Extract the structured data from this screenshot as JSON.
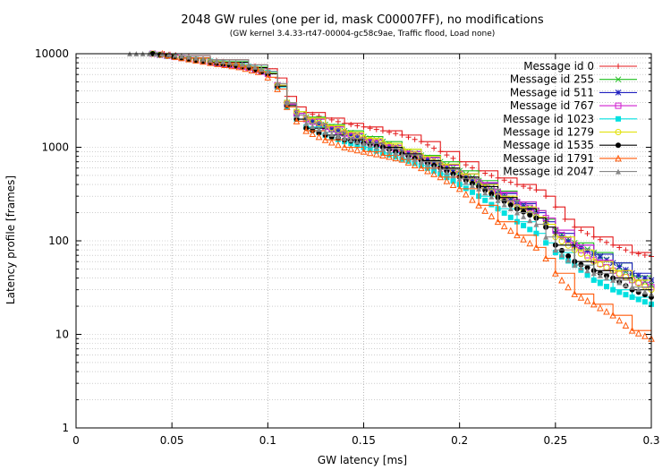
{
  "chart_data": {
    "type": "line",
    "title": "2048 GW rules (one per id, mask C00007FF), no modifications",
    "subtitle": "(GW kernel 3.4.33-rt47-00004-gc58c9ae, Traffic flood, Load none)",
    "xlabel": "GW latency [ms]",
    "ylabel": "Latency profile [frames]",
    "xlim": [
      0,
      0.3
    ],
    "ylim": [
      1,
      10000
    ],
    "yscale": "log",
    "grid": true,
    "legend_position": "top-right",
    "x_ticks": [
      {
        "value": 0,
        "label": "0"
      },
      {
        "value": 0.05,
        "label": "0.05"
      },
      {
        "value": 0.1,
        "label": "0.1"
      },
      {
        "value": 0.15,
        "label": "0.15"
      },
      {
        "value": 0.2,
        "label": "0.2"
      },
      {
        "value": 0.25,
        "label": "0.25"
      },
      {
        "value": 0.3,
        "label": "0.3"
      }
    ],
    "y_ticks": [
      {
        "value": 1,
        "label": "1"
      },
      {
        "value": 10,
        "label": "10"
      },
      {
        "value": 100,
        "label": "100"
      },
      {
        "value": 1000,
        "label": "1000"
      },
      {
        "value": 10000,
        "label": "10000"
      }
    ],
    "series": [
      {
        "name": "Message id 0",
        "color": "#e41a1c",
        "marker": "plus",
        "points": [
          [
            0.046,
            10000
          ],
          [
            0.055,
            9500
          ],
          [
            0.07,
            8600
          ],
          [
            0.09,
            7600
          ],
          [
            0.1,
            6900
          ],
          [
            0.105,
            5500
          ],
          [
            0.11,
            3500
          ],
          [
            0.115,
            2700
          ],
          [
            0.12,
            2350
          ],
          [
            0.13,
            2050
          ],
          [
            0.14,
            1800
          ],
          [
            0.15,
            1650
          ],
          [
            0.16,
            1500
          ],
          [
            0.17,
            1350
          ],
          [
            0.18,
            1150
          ],
          [
            0.19,
            900
          ],
          [
            0.2,
            700
          ],
          [
            0.21,
            560
          ],
          [
            0.22,
            470
          ],
          [
            0.23,
            400
          ],
          [
            0.24,
            350
          ],
          [
            0.245,
            300
          ],
          [
            0.25,
            230
          ],
          [
            0.255,
            170
          ],
          [
            0.26,
            140
          ],
          [
            0.27,
            110
          ],
          [
            0.28,
            90
          ],
          [
            0.29,
            75
          ],
          [
            0.3,
            68
          ]
        ]
      },
      {
        "name": "Message id 255",
        "color": "#1fbf1f",
        "marker": "cross",
        "points": [
          [
            0.04,
            10000
          ],
          [
            0.055,
            9000
          ],
          [
            0.07,
            8200
          ],
          [
            0.09,
            7200
          ],
          [
            0.1,
            6200
          ],
          [
            0.105,
            4600
          ],
          [
            0.11,
            3000
          ],
          [
            0.115,
            2400
          ],
          [
            0.12,
            2100
          ],
          [
            0.13,
            1750
          ],
          [
            0.14,
            1500
          ],
          [
            0.15,
            1300
          ],
          [
            0.16,
            1150
          ],
          [
            0.17,
            950
          ],
          [
            0.18,
            820
          ],
          [
            0.19,
            700
          ],
          [
            0.2,
            560
          ],
          [
            0.21,
            440
          ],
          [
            0.22,
            340
          ],
          [
            0.23,
            260
          ],
          [
            0.24,
            210
          ],
          [
            0.245,
            170
          ],
          [
            0.25,
            130
          ],
          [
            0.26,
            95
          ],
          [
            0.27,
            75
          ],
          [
            0.28,
            58
          ],
          [
            0.29,
            42
          ],
          [
            0.3,
            34
          ]
        ]
      },
      {
        "name": "Message id 511",
        "color": "#1f1fbf",
        "marker": "star",
        "points": [
          [
            0.04,
            10000
          ],
          [
            0.055,
            9000
          ],
          [
            0.07,
            8100
          ],
          [
            0.09,
            7100
          ],
          [
            0.1,
            6100
          ],
          [
            0.105,
            4500
          ],
          [
            0.11,
            2900
          ],
          [
            0.115,
            2300
          ],
          [
            0.12,
            2000
          ],
          [
            0.13,
            1650
          ],
          [
            0.14,
            1400
          ],
          [
            0.15,
            1200
          ],
          [
            0.16,
            1050
          ],
          [
            0.17,
            900
          ],
          [
            0.18,
            780
          ],
          [
            0.19,
            650
          ],
          [
            0.2,
            520
          ],
          [
            0.21,
            410
          ],
          [
            0.22,
            320
          ],
          [
            0.23,
            250
          ],
          [
            0.24,
            200
          ],
          [
            0.245,
            160
          ],
          [
            0.25,
            120
          ],
          [
            0.26,
            90
          ],
          [
            0.27,
            72
          ],
          [
            0.28,
            58
          ],
          [
            0.29,
            45
          ],
          [
            0.3,
            38
          ]
        ]
      },
      {
        "name": "Message id 767",
        "color": "#d020d0",
        "marker": "square-open",
        "points": [
          [
            0.04,
            10000
          ],
          [
            0.055,
            9000
          ],
          [
            0.07,
            8100
          ],
          [
            0.09,
            7100
          ],
          [
            0.1,
            6100
          ],
          [
            0.105,
            4600
          ],
          [
            0.11,
            2900
          ],
          [
            0.115,
            2300
          ],
          [
            0.12,
            2000
          ],
          [
            0.13,
            1650
          ],
          [
            0.14,
            1400
          ],
          [
            0.15,
            1200
          ],
          [
            0.16,
            1050
          ],
          [
            0.17,
            900
          ],
          [
            0.18,
            770
          ],
          [
            0.19,
            640
          ],
          [
            0.2,
            520
          ],
          [
            0.21,
            420
          ],
          [
            0.22,
            330
          ],
          [
            0.23,
            260
          ],
          [
            0.24,
            210
          ],
          [
            0.245,
            175
          ],
          [
            0.25,
            130
          ],
          [
            0.26,
            90
          ],
          [
            0.27,
            62
          ],
          [
            0.28,
            48
          ],
          [
            0.29,
            38
          ],
          [
            0.3,
            32
          ]
        ]
      },
      {
        "name": "Message id 1023",
        "color": "#00e0e0",
        "marker": "square-filled",
        "points": [
          [
            0.04,
            10000
          ],
          [
            0.055,
            9000
          ],
          [
            0.07,
            8300
          ],
          [
            0.09,
            7300
          ],
          [
            0.1,
            6300
          ],
          [
            0.105,
            4400
          ],
          [
            0.11,
            2700
          ],
          [
            0.115,
            2000
          ],
          [
            0.12,
            1650
          ],
          [
            0.13,
            1350
          ],
          [
            0.14,
            1150
          ],
          [
            0.15,
            1000
          ],
          [
            0.16,
            870
          ],
          [
            0.17,
            750
          ],
          [
            0.18,
            640
          ],
          [
            0.19,
            520
          ],
          [
            0.2,
            400
          ],
          [
            0.21,
            300
          ],
          [
            0.22,
            220
          ],
          [
            0.23,
            160
          ],
          [
            0.24,
            120
          ],
          [
            0.245,
            95
          ],
          [
            0.25,
            75
          ],
          [
            0.26,
            55
          ],
          [
            0.27,
            38
          ],
          [
            0.28,
            30
          ],
          [
            0.29,
            25
          ],
          [
            0.3,
            21
          ]
        ]
      },
      {
        "name": "Message id 1279",
        "color": "#e0e000",
        "marker": "circle-open",
        "points": [
          [
            0.04,
            10000
          ],
          [
            0.055,
            9000
          ],
          [
            0.07,
            8200
          ],
          [
            0.09,
            7200
          ],
          [
            0.1,
            6200
          ],
          [
            0.105,
            4600
          ],
          [
            0.11,
            3000
          ],
          [
            0.115,
            2400
          ],
          [
            0.12,
            2050
          ],
          [
            0.13,
            1700
          ],
          [
            0.14,
            1450
          ],
          [
            0.15,
            1250
          ],
          [
            0.16,
            1100
          ],
          [
            0.17,
            950
          ],
          [
            0.18,
            800
          ],
          [
            0.19,
            660
          ],
          [
            0.2,
            520
          ],
          [
            0.21,
            400
          ],
          [
            0.22,
            300
          ],
          [
            0.23,
            230
          ],
          [
            0.24,
            180
          ],
          [
            0.245,
            150
          ],
          [
            0.25,
            110
          ],
          [
            0.26,
            80
          ],
          [
            0.27,
            60
          ],
          [
            0.28,
            48
          ],
          [
            0.29,
            38
          ],
          [
            0.3,
            30
          ]
        ]
      },
      {
        "name": "Message id 1535",
        "color": "#000000",
        "marker": "circle-filled",
        "points": [
          [
            0.04,
            10000
          ],
          [
            0.055,
            9000
          ],
          [
            0.07,
            8100
          ],
          [
            0.09,
            7100
          ],
          [
            0.1,
            6100
          ],
          [
            0.105,
            4500
          ],
          [
            0.11,
            2800
          ],
          [
            0.115,
            2000
          ],
          [
            0.12,
            1600
          ],
          [
            0.13,
            1350
          ],
          [
            0.14,
            1200
          ],
          [
            0.15,
            1100
          ],
          [
            0.16,
            1000
          ],
          [
            0.17,
            850
          ],
          [
            0.18,
            720
          ],
          [
            0.19,
            600
          ],
          [
            0.2,
            480
          ],
          [
            0.21,
            380
          ],
          [
            0.22,
            290
          ],
          [
            0.23,
            220
          ],
          [
            0.24,
            175
          ],
          [
            0.245,
            140
          ],
          [
            0.25,
            90
          ],
          [
            0.26,
            60
          ],
          [
            0.27,
            48
          ],
          [
            0.28,
            40
          ],
          [
            0.29,
            30
          ],
          [
            0.3,
            25
          ]
        ]
      },
      {
        "name": "Message id 1791",
        "color": "#ff5a0a",
        "marker": "triangle-open",
        "points": [
          [
            0.045,
            10000
          ],
          [
            0.055,
            9000
          ],
          [
            0.07,
            8000
          ],
          [
            0.085,
            7200
          ],
          [
            0.095,
            6400
          ],
          [
            0.1,
            5600
          ],
          [
            0.105,
            4200
          ],
          [
            0.11,
            2700
          ],
          [
            0.115,
            1900
          ],
          [
            0.12,
            1500
          ],
          [
            0.13,
            1200
          ],
          [
            0.14,
            1000
          ],
          [
            0.15,
            900
          ],
          [
            0.16,
            820
          ],
          [
            0.17,
            740
          ],
          [
            0.18,
            600
          ],
          [
            0.19,
            480
          ],
          [
            0.2,
            360
          ],
          [
            0.21,
            240
          ],
          [
            0.22,
            160
          ],
          [
            0.23,
            115
          ],
          [
            0.24,
            85
          ],
          [
            0.245,
            65
          ],
          [
            0.25,
            45
          ],
          [
            0.26,
            27
          ],
          [
            0.27,
            21
          ],
          [
            0.28,
            16
          ],
          [
            0.29,
            11
          ],
          [
            0.3,
            9
          ]
        ]
      },
      {
        "name": "Message id 2047",
        "color": "#888888",
        "marker": "triangle-filled",
        "points": [
          [
            0.028,
            10000
          ],
          [
            0.045,
            10000
          ],
          [
            0.055,
            9500
          ],
          [
            0.07,
            8600
          ],
          [
            0.09,
            7600
          ],
          [
            0.1,
            6500
          ],
          [
            0.105,
            4800
          ],
          [
            0.11,
            3000
          ],
          [
            0.115,
            2200
          ],
          [
            0.12,
            1800
          ],
          [
            0.13,
            1450
          ],
          [
            0.14,
            1250
          ],
          [
            0.15,
            1100
          ],
          [
            0.16,
            960
          ],
          [
            0.17,
            830
          ],
          [
            0.18,
            700
          ],
          [
            0.19,
            580
          ],
          [
            0.2,
            460
          ],
          [
            0.21,
            360
          ],
          [
            0.22,
            270
          ],
          [
            0.23,
            200
          ],
          [
            0.24,
            150
          ],
          [
            0.245,
            110
          ],
          [
            0.25,
            80
          ],
          [
            0.26,
            55
          ],
          [
            0.27,
            45
          ],
          [
            0.28,
            38
          ],
          [
            0.29,
            32
          ],
          [
            0.3,
            27
          ]
        ]
      }
    ]
  }
}
